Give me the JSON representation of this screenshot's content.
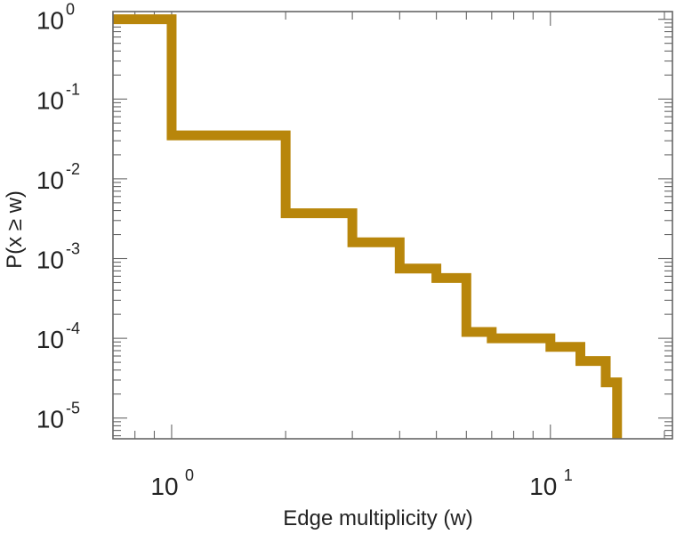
{
  "chart_data": {
    "type": "line",
    "title": "",
    "xlabel": "Edge multiplicity (w)",
    "ylabel": "P(x ≥ w)",
    "x_scale": "log",
    "y_scale": "log",
    "xlim": [
      0.7,
      21
    ],
    "ylim": [
      5.5e-06,
      1.25
    ],
    "grid": false,
    "drawstyle": "steps",
    "line_color": "#B8860B",
    "x_ticks": [
      {
        "base": "10",
        "exp": "0",
        "value": 1
      },
      {
        "base": "10",
        "exp": "1",
        "value": 10
      }
    ],
    "y_ticks": [
      {
        "base": "10",
        "exp": "0",
        "value": 1
      },
      {
        "base": "10",
        "exp": "-1",
        "value": 0.1
      },
      {
        "base": "10",
        "exp": "-2",
        "value": 0.01
      },
      {
        "base": "10",
        "exp": "-3",
        "value": 0.001
      },
      {
        "base": "10",
        "exp": "-4",
        "value": 0.0001
      },
      {
        "base": "10",
        "exp": "-5",
        "value": 1e-05
      }
    ],
    "series": [
      {
        "x": [
          1,
          2,
          3,
          4,
          5,
          6,
          7,
          10,
          12,
          14,
          15
        ],
        "y": [
          1.0,
          0.035,
          0.0037,
          0.0016,
          0.00075,
          0.00057,
          0.00012,
          0.0001,
          7.8e-05,
          5.2e-05,
          2.8e-05
        ]
      }
    ]
  }
}
